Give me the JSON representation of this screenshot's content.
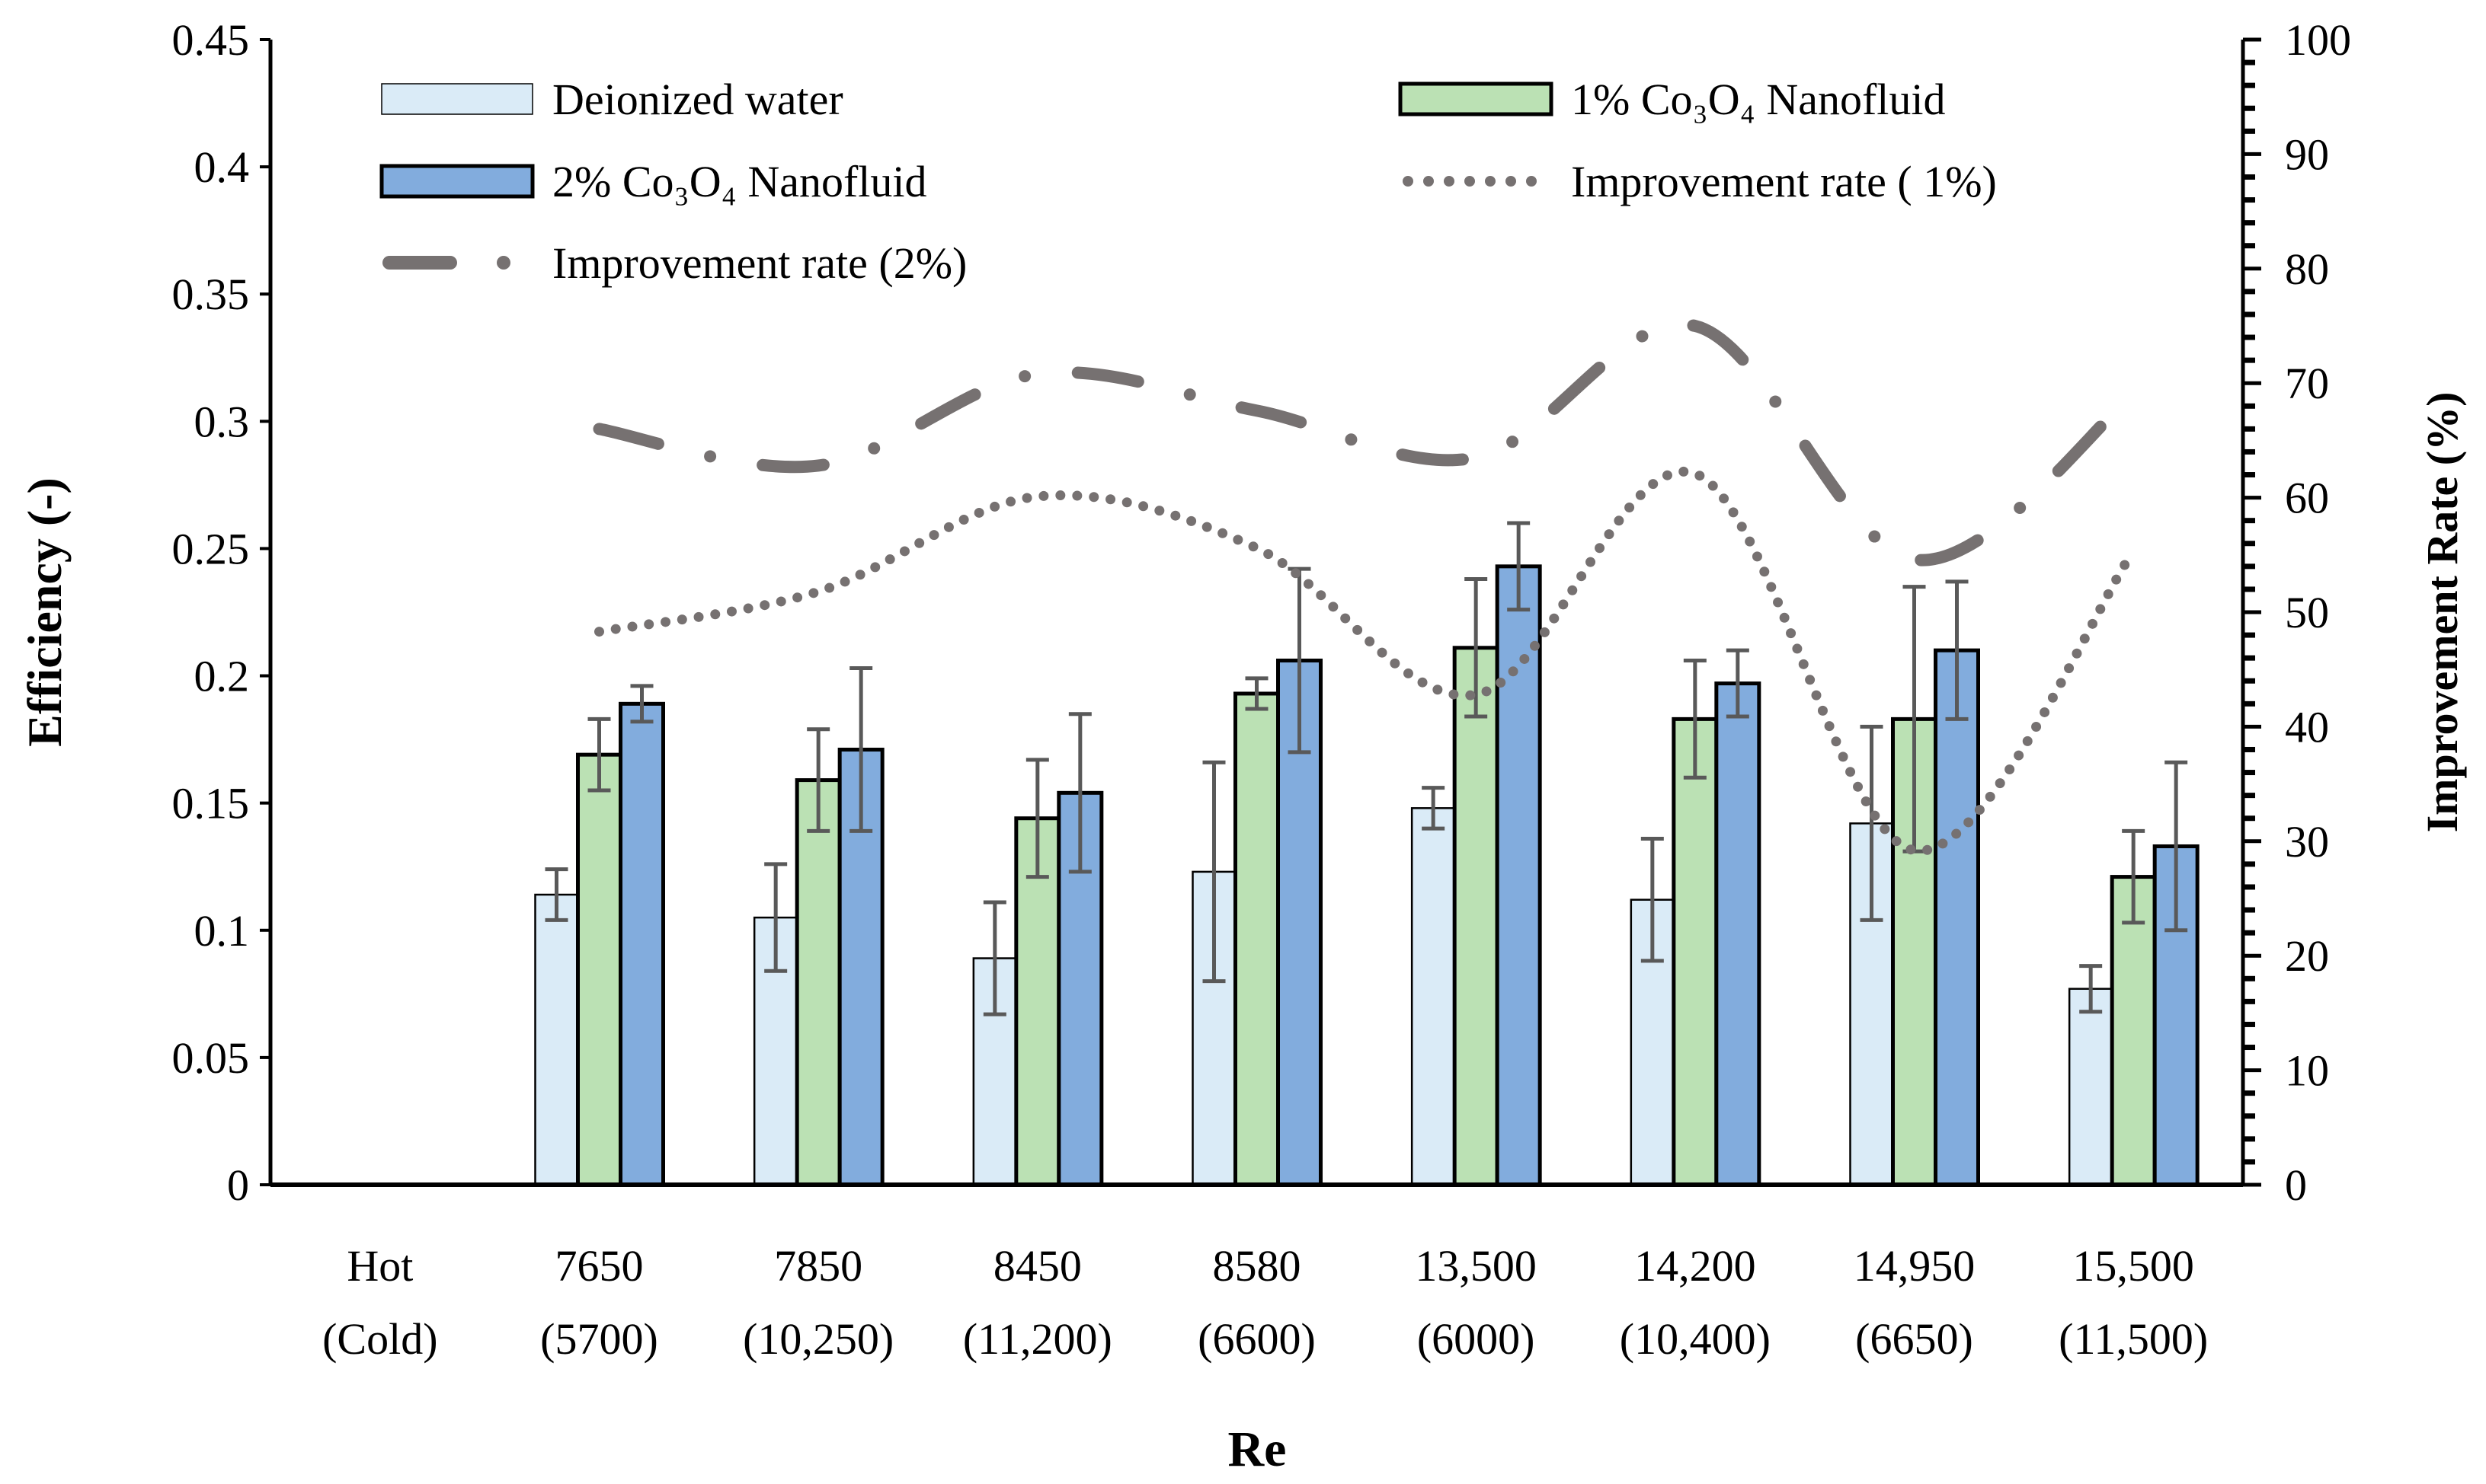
{
  "chart_data": {
    "type": "bar",
    "title": "",
    "xlabel": "Re",
    "ylabel": "Efficiency (-)",
    "y2label": "Improvement Rate (%)",
    "ylim": [
      0,
      0.45
    ],
    "y2lim": [
      0,
      100
    ],
    "yticks": [
      "0",
      "0.05",
      "0.1",
      "0.15",
      "0.2",
      "0.25",
      "0.3",
      "0.35",
      "0.4",
      "0.45"
    ],
    "y2ticks": [
      "0",
      "10",
      "20",
      "30",
      "40",
      "50",
      "60",
      "70",
      "80",
      "90",
      "100"
    ],
    "categories": [
      [
        "Hot",
        "(Cold)"
      ],
      [
        "7650",
        "(5700)"
      ],
      [
        "7850",
        "(10,250)"
      ],
      [
        "8450",
        "(11,200)"
      ],
      [
        "8580",
        "(6600)"
      ],
      [
        "13,500",
        "(6000)"
      ],
      [
        "14,200",
        "(10,400)"
      ],
      [
        "14,950",
        "(6650)"
      ],
      [
        "15,500",
        "(11,500)"
      ]
    ],
    "bar_series": [
      {
        "name": "Deionized water",
        "color": "#DAEBF7",
        "values": [
          null,
          0.114,
          0.105,
          0.089,
          0.123,
          0.148,
          0.112,
          0.142,
          0.077
        ],
        "errors": [
          null,
          0.01,
          0.021,
          0.022,
          0.043,
          0.008,
          0.024,
          0.038,
          0.009
        ]
      },
      {
        "name": "1% Co₃O₄ Nanofluid",
        "color": "#BBE1B4",
        "values": [
          null,
          0.169,
          0.159,
          0.144,
          0.193,
          0.211,
          0.183,
          0.183,
          0.121
        ],
        "errors": [
          null,
          0.014,
          0.02,
          0.023,
          0.006,
          0.027,
          0.023,
          0.052,
          0.018
        ]
      },
      {
        "name": "2% Co₃O₄ Nanofluid",
        "color": "#82ACDD",
        "values": [
          null,
          0.189,
          0.171,
          0.154,
          0.206,
          0.243,
          0.197,
          0.21,
          0.133
        ],
        "errors": [
          null,
          0.007,
          0.032,
          0.031,
          0.036,
          0.017,
          0.013,
          0.027,
          0.033
        ]
      }
    ],
    "line_series": [
      {
        "name": "Improvement rate ( 1%)",
        "style": "dotted",
        "color": "#767171",
        "axis": "right",
        "values": [
          null,
          48.3,
          51.8,
          60.1,
          55.6,
          42.8,
          62.1,
          29.2,
          55.3
        ]
      },
      {
        "name": "Improvement rate (2%)",
        "style": "dash-dot",
        "color": "#767171",
        "axis": "right",
        "values": [
          null,
          66.0,
          62.8,
          70.8,
          67.6,
          63.5,
          75.0,
          54.6,
          69.0
        ]
      }
    ],
    "grid": false,
    "legend_position": "top"
  }
}
